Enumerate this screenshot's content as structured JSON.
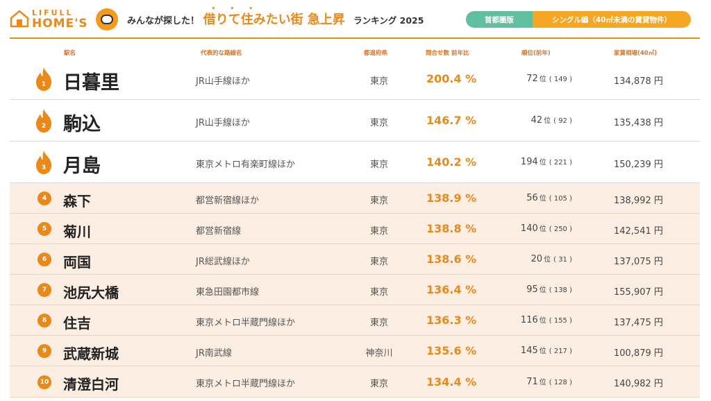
{
  "header": {
    "logo_line1": "LIFULL",
    "logo_line2": "HOME'S",
    "title_prefix": "みんなが探した！",
    "title_emph": "借りて住みたい街 急上昇",
    "title_suffix": "ランキング 2025",
    "emph_dots": "• • •",
    "region_tag": "首都圏版",
    "category_tag": "シングル編（40㎡未満の賃貸物件）"
  },
  "columns": {
    "station": "駅名",
    "line": "代表的な路線名",
    "prefecture": "都道府県",
    "ratio": "問合せ数 前年比",
    "rank": "順位(前年)",
    "rent": "家賃相場(40㎡)"
  },
  "units": {
    "rank_unit": "位",
    "rent_unit": "円"
  },
  "rows": [
    {
      "rank": "1",
      "station": "日暮里",
      "line": "JR山手線ほか",
      "prefecture": "東京",
      "ratio": "200.4 %",
      "current_rank": "72",
      "prev_rank": "( 149 )",
      "rent": "134,878 円"
    },
    {
      "rank": "2",
      "station": "駒込",
      "line": "JR山手線ほか",
      "prefecture": "東京",
      "ratio": "146.7 %",
      "current_rank": "42",
      "prev_rank": "(  92  )",
      "rent": "135,438 円"
    },
    {
      "rank": "3",
      "station": "月島",
      "line": "東京メトロ有楽町線ほか",
      "prefecture": "東京",
      "ratio": "140.2 %",
      "current_rank": "194",
      "prev_rank": "( 221 )",
      "rent": "150,239 円"
    },
    {
      "rank": "4",
      "station": "森下",
      "line": "都営新宿線ほか",
      "prefecture": "東京",
      "ratio": "138.9 %",
      "current_rank": "56",
      "prev_rank": "( 105 )",
      "rent": "138,992 円"
    },
    {
      "rank": "5",
      "station": "菊川",
      "line": "都営新宿線",
      "prefecture": "東京",
      "ratio": "138.8 %",
      "current_rank": "140",
      "prev_rank": "( 250 )",
      "rent": "142,541 円"
    },
    {
      "rank": "6",
      "station": "両国",
      "line": "JR総武線ほか",
      "prefecture": "東京",
      "ratio": "138.6 %",
      "current_rank": "20",
      "prev_rank": "(  31  )",
      "rent": "137,075 円"
    },
    {
      "rank": "7",
      "station": "池尻大橋",
      "line": "東急田園都市線",
      "prefecture": "東京",
      "ratio": "136.4 %",
      "current_rank": "95",
      "prev_rank": "( 138 )",
      "rent": "155,907 円"
    },
    {
      "rank": "8",
      "station": "住吉",
      "line": "東京メトロ半蔵門線ほか",
      "prefecture": "東京",
      "ratio": "136.3 %",
      "current_rank": "116",
      "prev_rank": "( 155 )",
      "rent": "137,475 円"
    },
    {
      "rank": "9",
      "station": "武蔵新城",
      "line": "JR南武線",
      "prefecture": "神奈川",
      "ratio": "135.6 %",
      "current_rank": "145",
      "prev_rank": "( 217 )",
      "rent": "100,879 円"
    },
    {
      "rank": "10",
      "station": "清澄白河",
      "line": "東京メトロ半蔵門線ほか",
      "prefecture": "東京",
      "ratio": "134.4 %",
      "current_rank": "71",
      "prev_rank": "( 128 )",
      "rent": "140,982 円"
    }
  ],
  "colors": {
    "accent": "#e8891a",
    "region_tag_bg": "#5fbf9f",
    "category_tag_bg": "#f5a623",
    "row_tint": "#fdeee3"
  },
  "icons": {
    "logo": "house-logo-icon",
    "mascot": "mascot-icon",
    "top3_marker": "flame-icon",
    "rank_marker": "rank-badge-icon"
  }
}
